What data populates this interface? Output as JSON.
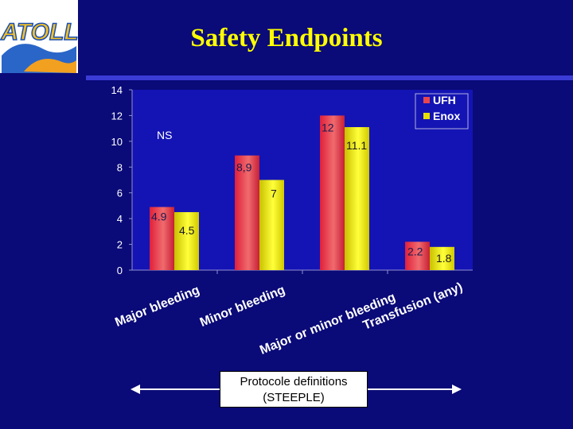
{
  "title": "Safety Endpoints",
  "logo": {
    "text": "ATOLL"
  },
  "annotation": "NS",
  "protocol": {
    "line1": "Protocole definitions",
    "line2": "(STEEPLE)"
  },
  "colors": {
    "background": "#0a0a78",
    "title": "#ffff00",
    "ufh": "#e8464e",
    "enox": "#e8e000",
    "plot_bg": "#1414b4"
  },
  "chart_data": {
    "type": "bar",
    "title": "",
    "categories": [
      "Major bleeding",
      "Minor bleeding",
      "Major or minor bleeding",
      "Transfusion (any)"
    ],
    "series": [
      {
        "name": "UFH",
        "values": [
          4.9,
          8.9,
          12,
          2.2
        ],
        "labels": [
          "4.9",
          "8,9",
          "12",
          "2.2"
        ]
      },
      {
        "name": "Enox",
        "values": [
          4.5,
          7,
          11.1,
          1.8
        ],
        "labels": [
          "4.5",
          "7",
          "11.1",
          "1.8"
        ]
      }
    ],
    "ylim": [
      0,
      14
    ],
    "yticks": [
      0,
      2,
      4,
      6,
      8,
      10,
      12,
      14
    ],
    "xlabel": "",
    "ylabel": "",
    "legend": "top-right",
    "grid": false
  }
}
